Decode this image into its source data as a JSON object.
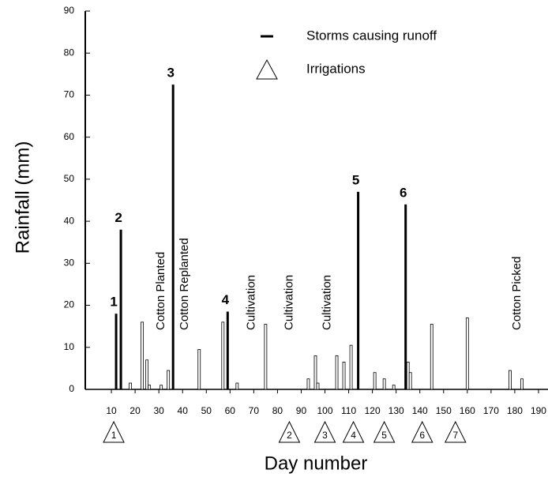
{
  "chart_data": {
    "type": "bar",
    "xlabel": "Day number",
    "ylabel": "Rainfall (mm)",
    "xlim": [
      -1,
      194
    ],
    "ylim": [
      0,
      90
    ],
    "xticks": [
      10,
      20,
      30,
      40,
      50,
      60,
      70,
      80,
      90,
      100,
      110,
      120,
      130,
      140,
      150,
      160,
      170,
      180,
      190
    ],
    "yticks": [
      0,
      10,
      20,
      30,
      40,
      50,
      60,
      70,
      80,
      90
    ],
    "series": [
      {
        "name": "Storms causing runoff",
        "color": "#000000",
        "style": "solid",
        "x": [
          12,
          14,
          36,
          59,
          114,
          134
        ],
        "values": [
          18,
          38,
          72.5,
          18.5,
          47,
          44
        ],
        "storm_labels": [
          "1",
          "2",
          "3",
          "4",
          "5",
          "6"
        ]
      },
      {
        "color": "#000000",
        "style": "hollow",
        "x": [
          18,
          23,
          25,
          26,
          31,
          34,
          47,
          57,
          63,
          75,
          93,
          96,
          97,
          105,
          108,
          111,
          121,
          125,
          129,
          135,
          136,
          145,
          160,
          178,
          183
        ],
        "values": [
          1.5,
          16,
          7,
          1,
          1,
          4.5,
          9.5,
          16,
          1.5,
          15.5,
          2.5,
          8,
          1.5,
          8,
          6.5,
          10.5,
          4,
          2.5,
          1,
          6.5,
          4,
          15.5,
          17,
          4.5,
          2.5
        ]
      }
    ],
    "irrigations": {
      "name": "Irrigations",
      "x": [
        11,
        85,
        100,
        112,
        125,
        141,
        155
      ],
      "labels": [
        "1",
        "2",
        "3",
        "4",
        "5",
        "6",
        "7"
      ]
    },
    "annotations": [
      {
        "text": "Cotton Planted",
        "x": 31
      },
      {
        "text": "Cotton Replanted",
        "x": 41
      },
      {
        "text": "Cultivation",
        "x": 69
      },
      {
        "text": "Cultivation",
        "x": 85
      },
      {
        "text": "Cultivation",
        "x": 101
      },
      {
        "text": "Cotton Picked",
        "x": 181
      }
    ]
  }
}
